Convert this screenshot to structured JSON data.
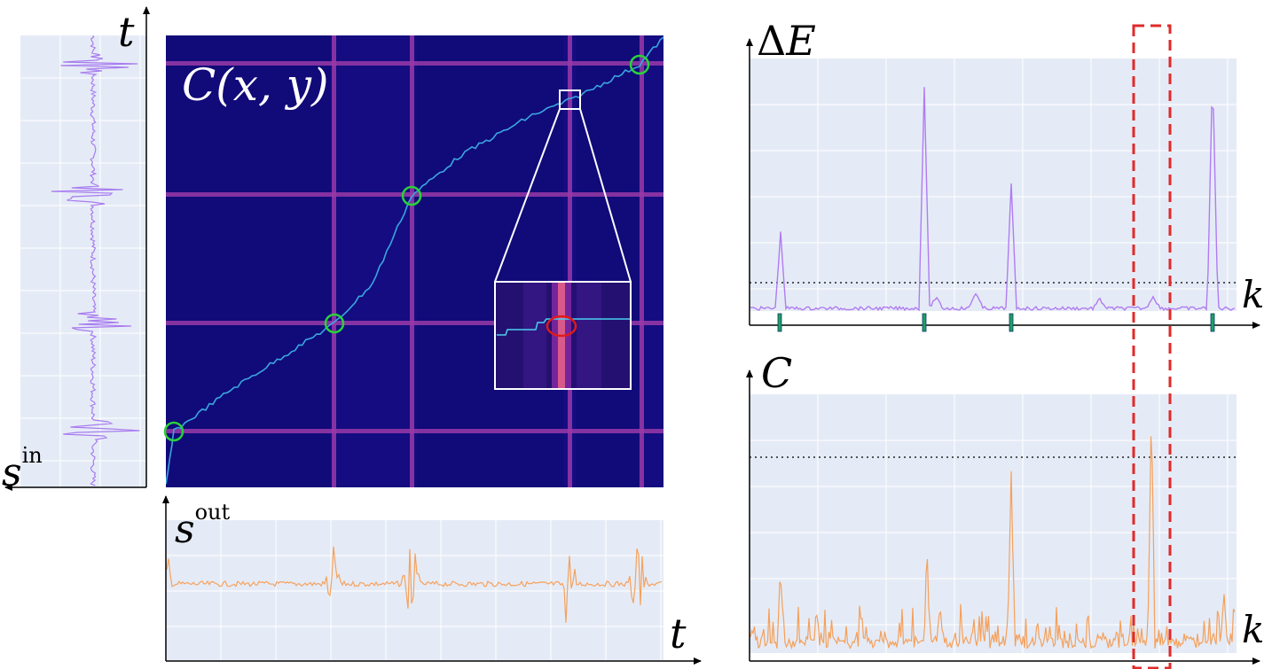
{
  "labels": {
    "t_left": "t",
    "s_in_base": "s",
    "s_in_sup": "in",
    "s_out_base": "s",
    "s_out_sup": "out",
    "t_bottom": "t",
    "cost_matrix": "C(x, y)",
    "delta_e_delta": "Δ",
    "delta_e_e": "E",
    "k_top": "k",
    "c_right": "C",
    "k_bottom": "k"
  },
  "colors": {
    "panel_bg": "#e5ebf6",
    "heatmap_bg": "#140c80",
    "heatmap_line": "#9a3aa8",
    "warp_path": "#39a6e0",
    "marker_green": "#2ad13a",
    "marker_red": "#e01a1a",
    "signal_in": "#a87cf0",
    "signal_out": "#f5a25e",
    "delta_e_line": "#b07cf2",
    "c_line": "#f5a05a",
    "threshold": "#222222",
    "highlight_box": "#e02a2a",
    "tick_marker": "#1ea064"
  }
}
